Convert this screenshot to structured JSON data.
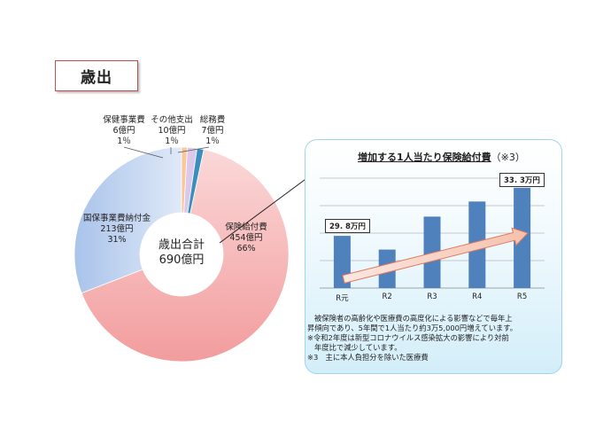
{
  "page": {
    "title": "歳出"
  },
  "chart_data": [
    {
      "type": "pie",
      "center_label": {
        "line1": "歳出合計",
        "line2": "690億円"
      },
      "slices": [
        {
          "name": "保険給付費",
          "amount": "454億円",
          "percent": "66%",
          "value": 454,
          "color": "#f2a7a8"
        },
        {
          "name": "国保事業費納付金",
          "amount": "213億円",
          "percent": "31%",
          "value": 213,
          "color": "#9cb9e6"
        },
        {
          "name": "保健事業費",
          "amount": "6億円",
          "percent": "1％",
          "value": 6,
          "color": "#f7c89a"
        },
        {
          "name": "その他支出",
          "amount": "10億円",
          "percent": "1％",
          "value": 10,
          "color": "#dcc8ea"
        },
        {
          "name": "総務費",
          "amount": "7億円",
          "percent": "1％",
          "value": 7,
          "color": "#3a8fbf"
        }
      ]
    },
    {
      "type": "bar",
      "title": "増加する1人当たり保険給付費",
      "title_note": "（※3）",
      "categories": [
        "R元",
        "R2",
        "R3",
        "R4",
        "R5"
      ],
      "values": [
        29.8,
        28.8,
        31.2,
        32.3,
        33.3
      ],
      "bar_color": "#4f81bd",
      "ylim": [
        26,
        34
      ],
      "grid": true,
      "callouts": {
        "first": "29. 8万円",
        "last": "33. 3万円"
      }
    }
  ],
  "notes": {
    "line1": "被保険者の高齢化や医療費の高度化による影響などで毎年上",
    "line2": "昇傾向であり、5年間で1人当たり約3万5,000円増えています。",
    "line3": "※令和2年度は新型コロナウイルス感染拡大の影響により対前",
    "line4": "年度比で減少しています。",
    "line5": "※3　主に本人負担分を除いた医療費"
  }
}
